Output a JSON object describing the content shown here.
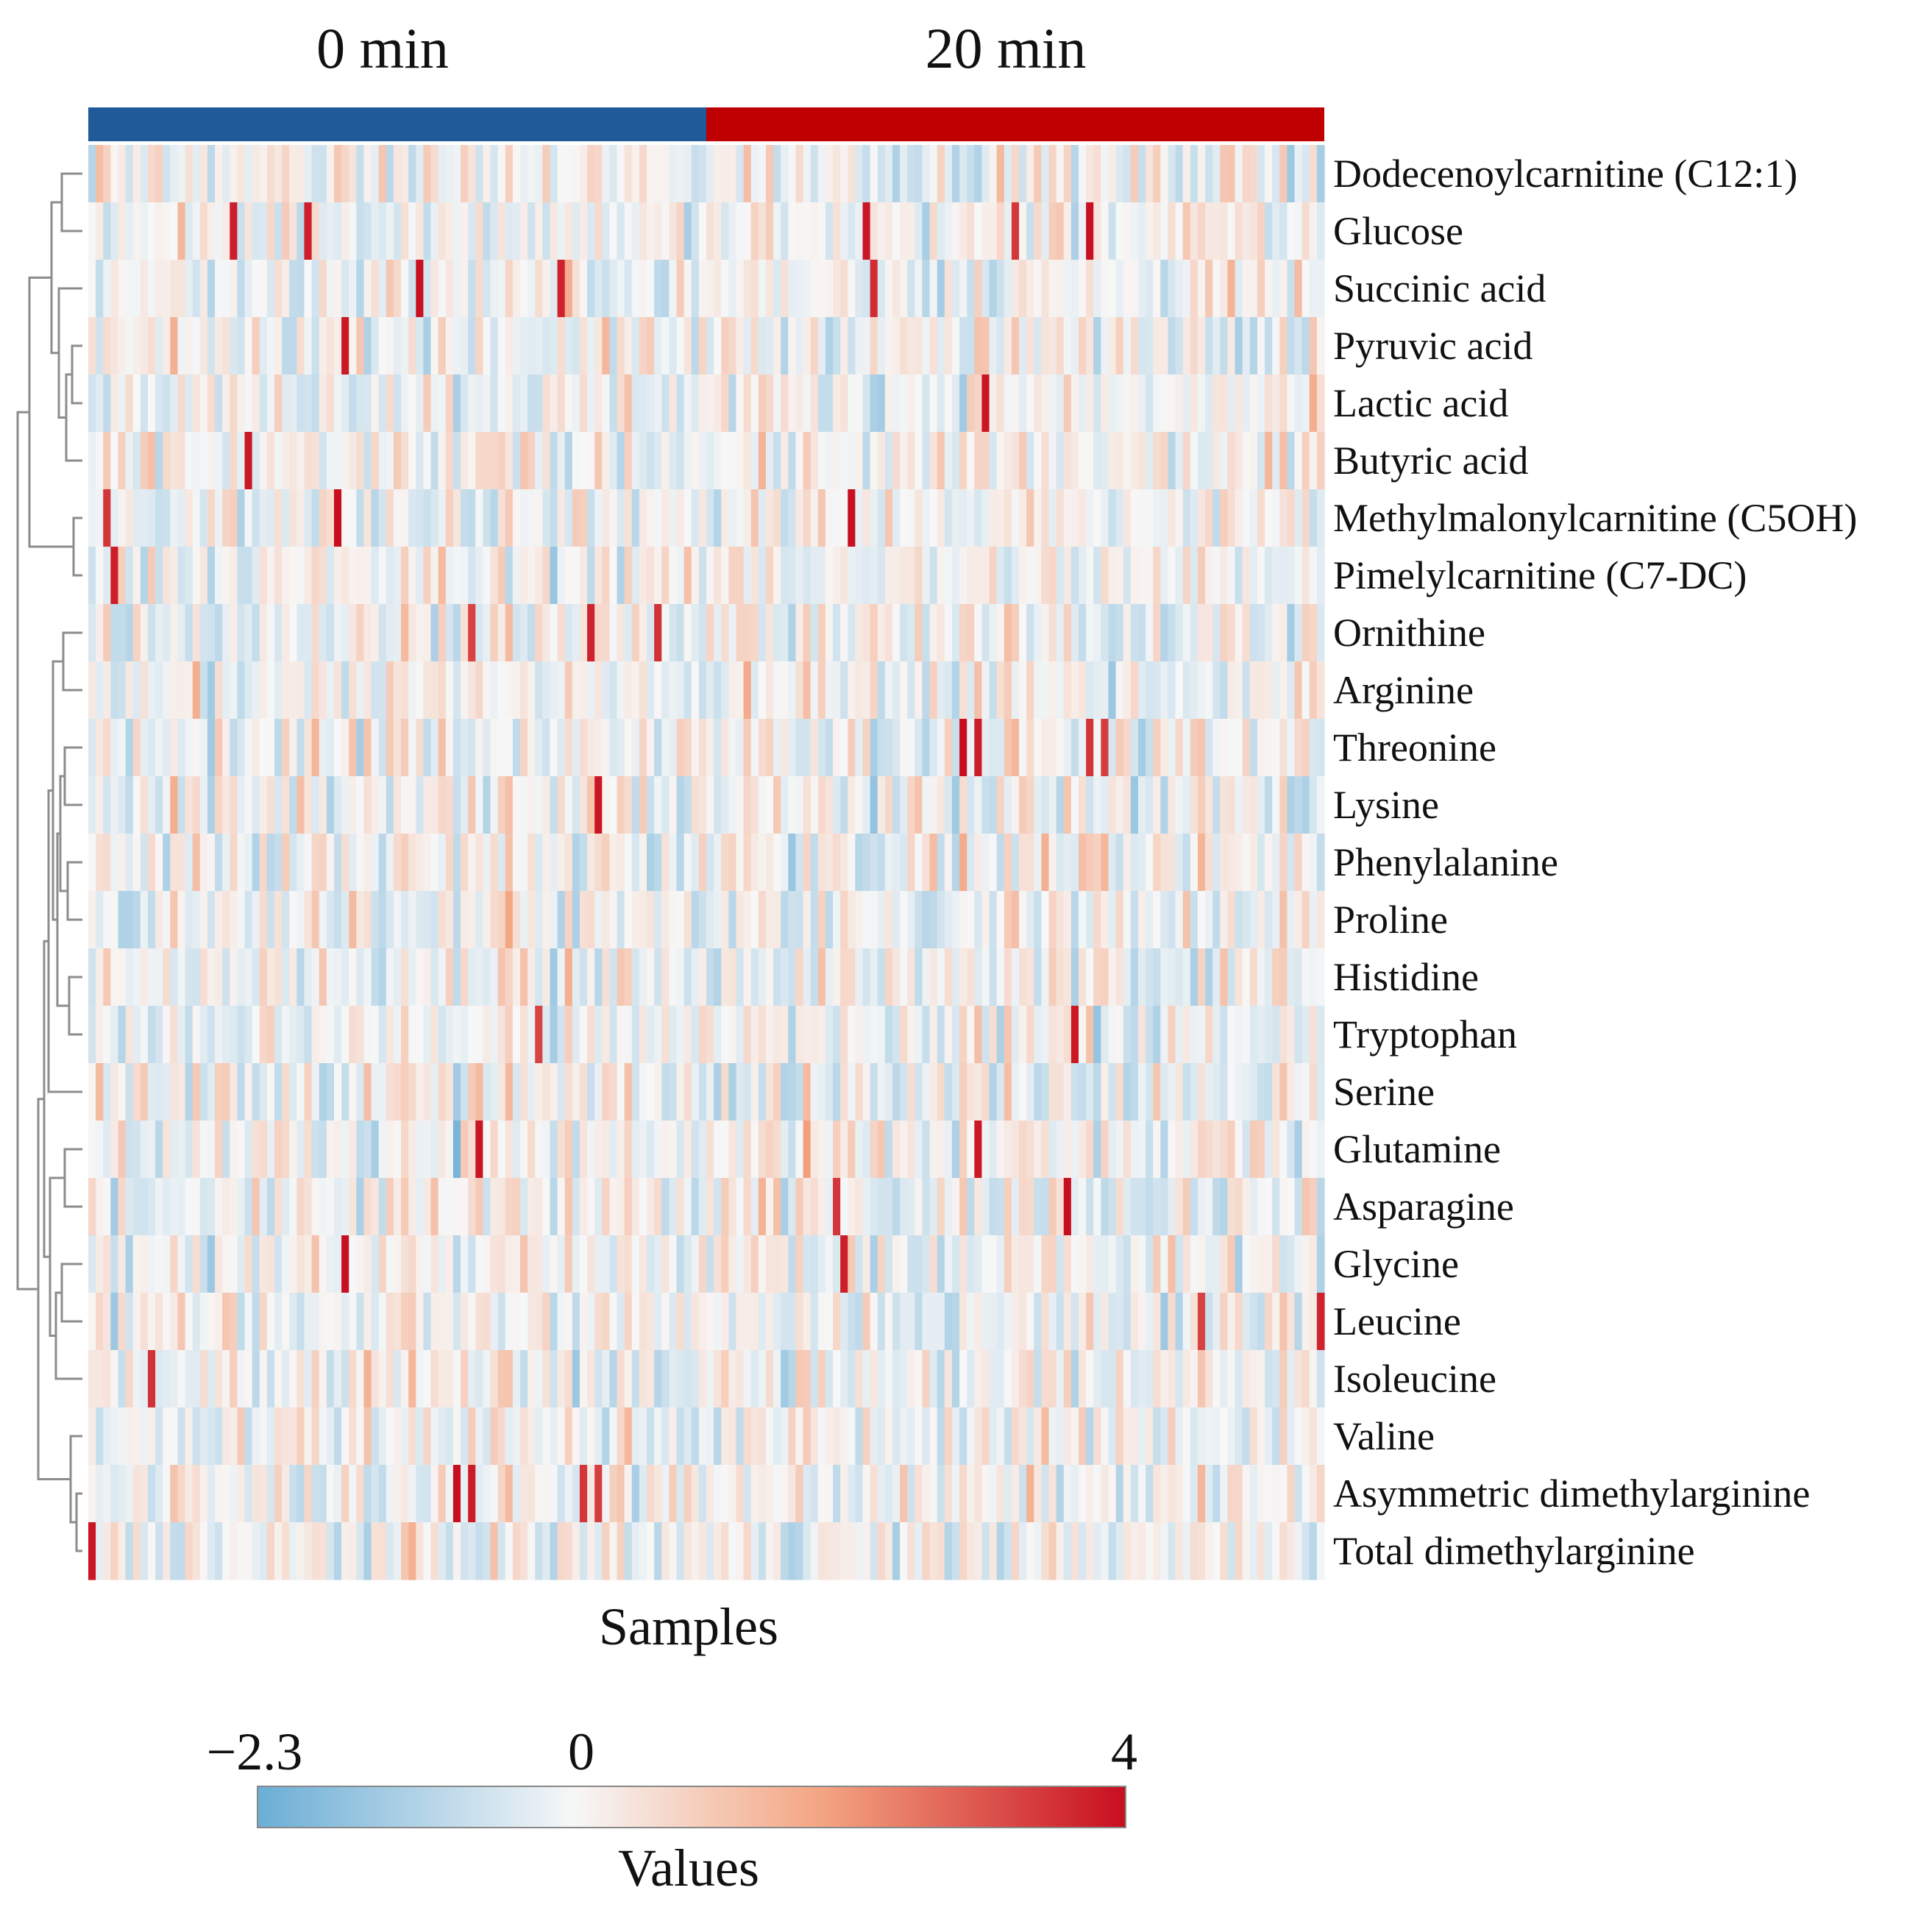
{
  "chart_data": {
    "type": "heatmap",
    "title": "",
    "xlabel": "Samples",
    "colorbar_label": "Values",
    "colorbar_ticks": [
      {
        "value": -2.3,
        "label": "−2.3"
      },
      {
        "value": 0,
        "label": "0"
      },
      {
        "value": 4,
        "label": "4"
      }
    ],
    "color_range": [
      -2.3,
      4
    ],
    "colors": {
      "low": "#6baed6",
      "mid": "#f7f7f7",
      "high": "#c80e1f",
      "group_0": "#1f5b99",
      "group_20": "#c00000"
    },
    "groups": [
      {
        "label": "0 min",
        "n_samples": 83
      },
      {
        "label": "20 min",
        "n_samples": 83
      }
    ],
    "rows": [
      "Dodecenoylcarnitine (C12:1)",
      "Glucose",
      "Succinic acid",
      "Pyruvic acid",
      "Lactic acid",
      "Butyric acid",
      "Methylmalonylcarnitine (C5OH)",
      "Pimelylcarnitine (C7-DC)",
      "Ornithine",
      "Arginine",
      "Threonine",
      "Lysine",
      "Phenylalanine",
      "Proline",
      "Histidine",
      "Tryptophan",
      "Serine",
      "Glutamine",
      "Asparagine",
      "Glycine",
      "Leucine",
      "Isoleucine",
      "Valine",
      "Asymmetric dimethylarginine",
      "Total dimethylarginine"
    ],
    "dendrogram": "hierarchical clustering of rows, drawn on the left",
    "values_note": "cell values vary per sample between −2.3 and 4; represented by a deterministic pseudo-random pattern"
  }
}
